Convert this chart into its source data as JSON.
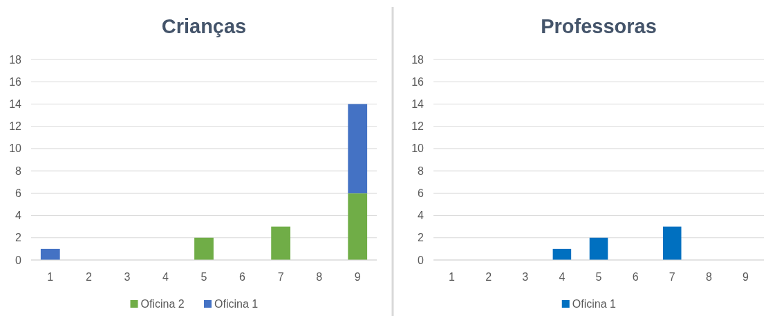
{
  "chart_data": [
    {
      "type": "bar",
      "title": "Crianças",
      "categories": [
        "1",
        "2",
        "3",
        "4",
        "5",
        "6",
        "7",
        "8",
        "9"
      ],
      "stacked": true,
      "ylim": [
        0,
        18
      ],
      "yticks": [
        0,
        2,
        4,
        6,
        8,
        10,
        12,
        14,
        16,
        18
      ],
      "grid": "y",
      "legend": "bottom",
      "series": [
        {
          "name": "Oficina 2",
          "color": "#70ad47",
          "values": [
            0,
            0,
            0,
            0,
            2,
            0,
            3,
            0,
            6
          ]
        },
        {
          "name": "Oficina 1",
          "color": "#4472c4",
          "values": [
            1,
            0,
            0,
            0,
            0,
            0,
            0,
            0,
            8
          ]
        }
      ]
    },
    {
      "type": "bar",
      "title": "Professoras",
      "categories": [
        "1",
        "2",
        "3",
        "4",
        "5",
        "6",
        "7",
        "8",
        "9"
      ],
      "ylim": [
        0,
        18
      ],
      "yticks": [
        0,
        2,
        4,
        6,
        8,
        10,
        12,
        14,
        16,
        18
      ],
      "grid": "y",
      "legend": "bottom",
      "series": [
        {
          "name": "Oficina 1",
          "color": "#0070c0",
          "values": [
            0,
            0,
            0,
            1,
            2,
            0,
            3,
            0,
            0
          ]
        }
      ]
    }
  ]
}
